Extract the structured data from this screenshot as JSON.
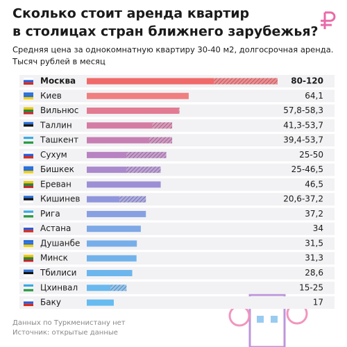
{
  "chart_data": {
    "type": "range-bar",
    "title": [
      "Сколько стоит аренда квартир",
      "в столицах стран ближнего зарубежья?"
    ],
    "subtitle": [
      "Средняя цена за однокомнатную квартиру 30-40 м2, долгосрочная аренда.",
      "Тысяч рублей в месяц"
    ],
    "categories": [
      "Москва",
      "Киев",
      "Вильнюс",
      "Таллин",
      "Ташкент",
      "Сухум",
      "Бишкек",
      "Ереван",
      "Кишинев",
      "Рига",
      "Астана",
      "Душанбе",
      "Минск",
      "Тбилиси",
      "Цхинвал",
      "Баку"
    ],
    "values": [
      80,
      64.1,
      57.8,
      41.3,
      39.4,
      25,
      25,
      46.5,
      20.6,
      37.2,
      34,
      31.5,
      31.3,
      28.6,
      15,
      17
    ],
    "high": [
      120,
      null,
      58.3,
      53.7,
      53.7,
      50,
      46.5,
      null,
      37.2,
      null,
      null,
      null,
      null,
      null,
      25,
      null
    ],
    "value_labels": [
      "80-120",
      "64,1",
      "57,8-58,3",
      "41,3-53,7",
      "39,4-53,7",
      "25-50",
      "25-46,5",
      "46,5",
      "20,6-37,2",
      "37,2",
      "34",
      "31,5",
      "31,3",
      "28,6",
      "15-25",
      "17"
    ],
    "colors": [
      "#f06a6a",
      "#f07f7f",
      "#e27b92",
      "#d47ca4",
      "#c67eb3",
      "#b883c2",
      "#aa89cd",
      "#9d8fd5",
      "#9096dc",
      "#86a0e2",
      "#7ea8e6",
      "#77aee9",
      "#71b2eb",
      "#6db6ed",
      "#69b8ee",
      "#66bbf0"
    ],
    "xlim": [
      0,
      120
    ],
    "notes": [
      "Данных по Туркменистану нет",
      "Источник: открытые данные"
    ]
  }
}
